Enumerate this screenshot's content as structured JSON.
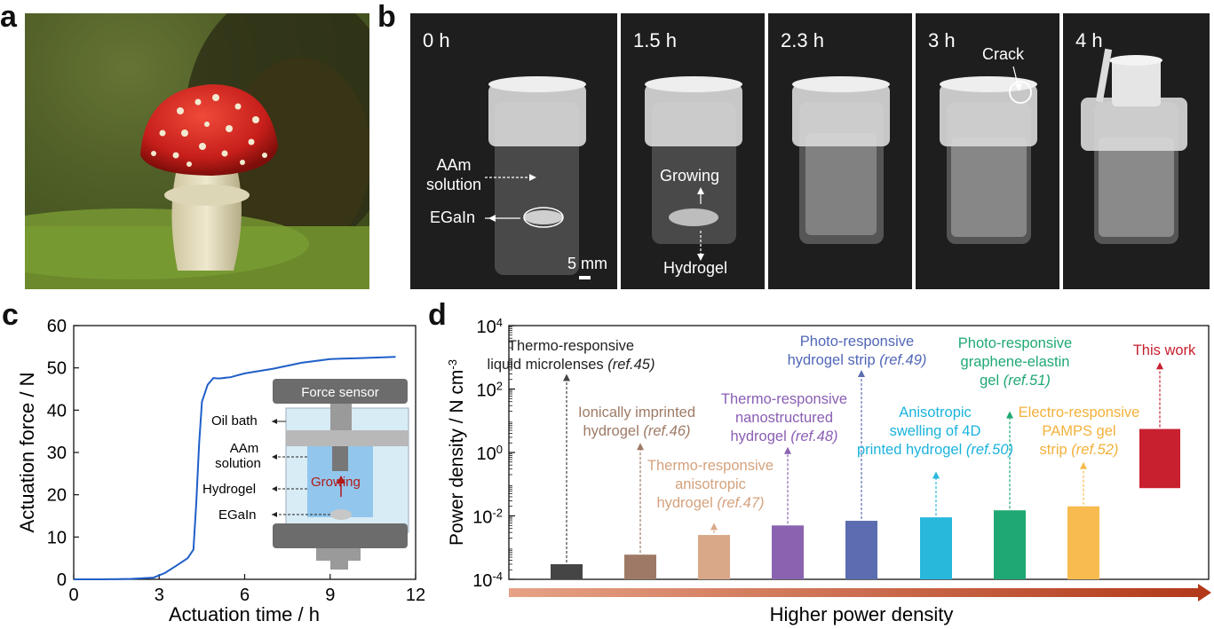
{
  "panel_letters": {
    "a": "a",
    "b": "b",
    "c": "c",
    "d": "d"
  },
  "panel_b": {
    "times": [
      "0 h",
      "1.5 h",
      "2.3 h",
      "3 h",
      "4 h"
    ],
    "label_aam_line1": "AAm",
    "label_aam_line2": "solution",
    "label_egain": "EGaIn",
    "label_growing": "Growing",
    "label_hydrogel": "Hydrogel",
    "label_crack": "Crack",
    "scale_bar": "5 mm"
  },
  "panel_c": {
    "inset": {
      "force_sensor": "Force sensor",
      "oil_bath": "Oil bath",
      "aam_line1": "AAm",
      "aam_line2": "solution",
      "hydrogel": "Hydrogel",
      "egain": "EGaIn",
      "growing": "Growing"
    }
  },
  "panel_d": {
    "arrow_label": "Higher power density"
  },
  "chart_data": [
    {
      "type": "line",
      "xlabel": "Actuation time / h",
      "ylabel": "Actuation force / N",
      "xlim": [
        0,
        12
      ],
      "ylim": [
        0,
        60
      ],
      "xticks": [
        "0",
        "3",
        "6",
        "9",
        "12"
      ],
      "yticks": [
        "0",
        "10",
        "20",
        "30",
        "40",
        "50",
        "60"
      ],
      "series": [
        {
          "color": "#1f5fc8",
          "x": [
            0,
            1,
            2,
            2.8,
            3.2,
            3.6,
            4.0,
            4.2,
            4.3,
            4.4,
            4.5,
            4.7,
            4.9,
            5.1,
            5.5,
            6,
            7,
            8,
            9,
            10,
            11.3
          ],
          "y": [
            0,
            0,
            0.1,
            0.4,
            1.5,
            3.2,
            5,
            7,
            18,
            32,
            42,
            46,
            47.6,
            47.5,
            47.8,
            48.7,
            49.8,
            51.2,
            52.1,
            52.3,
            52.6
          ]
        }
      ]
    },
    {
      "type": "bar",
      "ylabel": "Power density / N cm-3",
      "yscale": "log",
      "ylim": [
        0.0001,
        10000
      ],
      "yticks": [
        "10-4",
        "10-2",
        "100",
        "102",
        "104"
      ],
      "bars": [
        {
          "label_line1": "Thermo-responsive",
          "label_line2": "liquid microlenses",
          "ref": "(ref.45)",
          "bottom": 0.0001,
          "top": 0.0003,
          "arrow_to": 300,
          "color": "#454545",
          "label_color": "#222222"
        },
        {
          "label_line1": "Ionically imprinted",
          "label_line2": "hydrogel",
          "ref": "(ref.46)",
          "bottom": 0.0001,
          "top": 0.0006,
          "arrow_to": 2,
          "color": "#9e7a66",
          "label_color": "#9e7a66"
        },
        {
          "label_line1": "Thermo-responsive",
          "label_line2": "anisotropic",
          "label_line3": "hydrogel",
          "ref": "(ref.47)",
          "bottom": 0.0001,
          "top": 0.0025,
          "arrow_to": 0.006,
          "color": "#d9a888",
          "label_color": "#d4a27e"
        },
        {
          "label_line1": "Thermo-responsive",
          "label_line2": "nanostructured",
          "label_line3": "hydrogel",
          "ref": "(ref.48)",
          "bottom": 0.0001,
          "top": 0.005,
          "arrow_to": 1.5,
          "color": "#8a63b0",
          "label_color": "#8a5eb3"
        },
        {
          "label_line1": "Photo-responsive",
          "label_line2": "hydrogel strip",
          "ref": "(ref.49)",
          "bottom": 0.0001,
          "top": 0.007,
          "arrow_to": 400,
          "color": "#5b6db0",
          "label_color": "#5167b8"
        },
        {
          "label_line1": "Anisotropic",
          "label_line2": "swelling of 4D",
          "label_line3": "printed hydrogel",
          "ref": "(ref.50)",
          "bottom": 0.0001,
          "top": 0.009,
          "arrow_to": 0.25,
          "color": "#27b8dc",
          "label_color": "#1ab3dc"
        },
        {
          "label_line1": "Photo-responsive",
          "label_line2": "graphene-elastin",
          "label_line3": "gel",
          "ref": "(ref.51)",
          "bottom": 0.0001,
          "top": 0.015,
          "arrow_to": 20,
          "color": "#1fa873",
          "label_color": "#1fa873"
        },
        {
          "label_line1": "Electro-responsive",
          "label_line2": "PAMPS gel",
          "label_line3": "strip",
          "ref": "(ref.52)",
          "bottom": 0.0001,
          "top": 0.02,
          "arrow_to": 0.5,
          "color": "#f7bb4f",
          "label_color": "#f3b13a"
        },
        {
          "label_line1": "This work",
          "bottom": 0.075,
          "top": 5.5,
          "arrow_to": 700,
          "color": "#c8202f",
          "label_color": "#c8202f"
        }
      ]
    }
  ]
}
